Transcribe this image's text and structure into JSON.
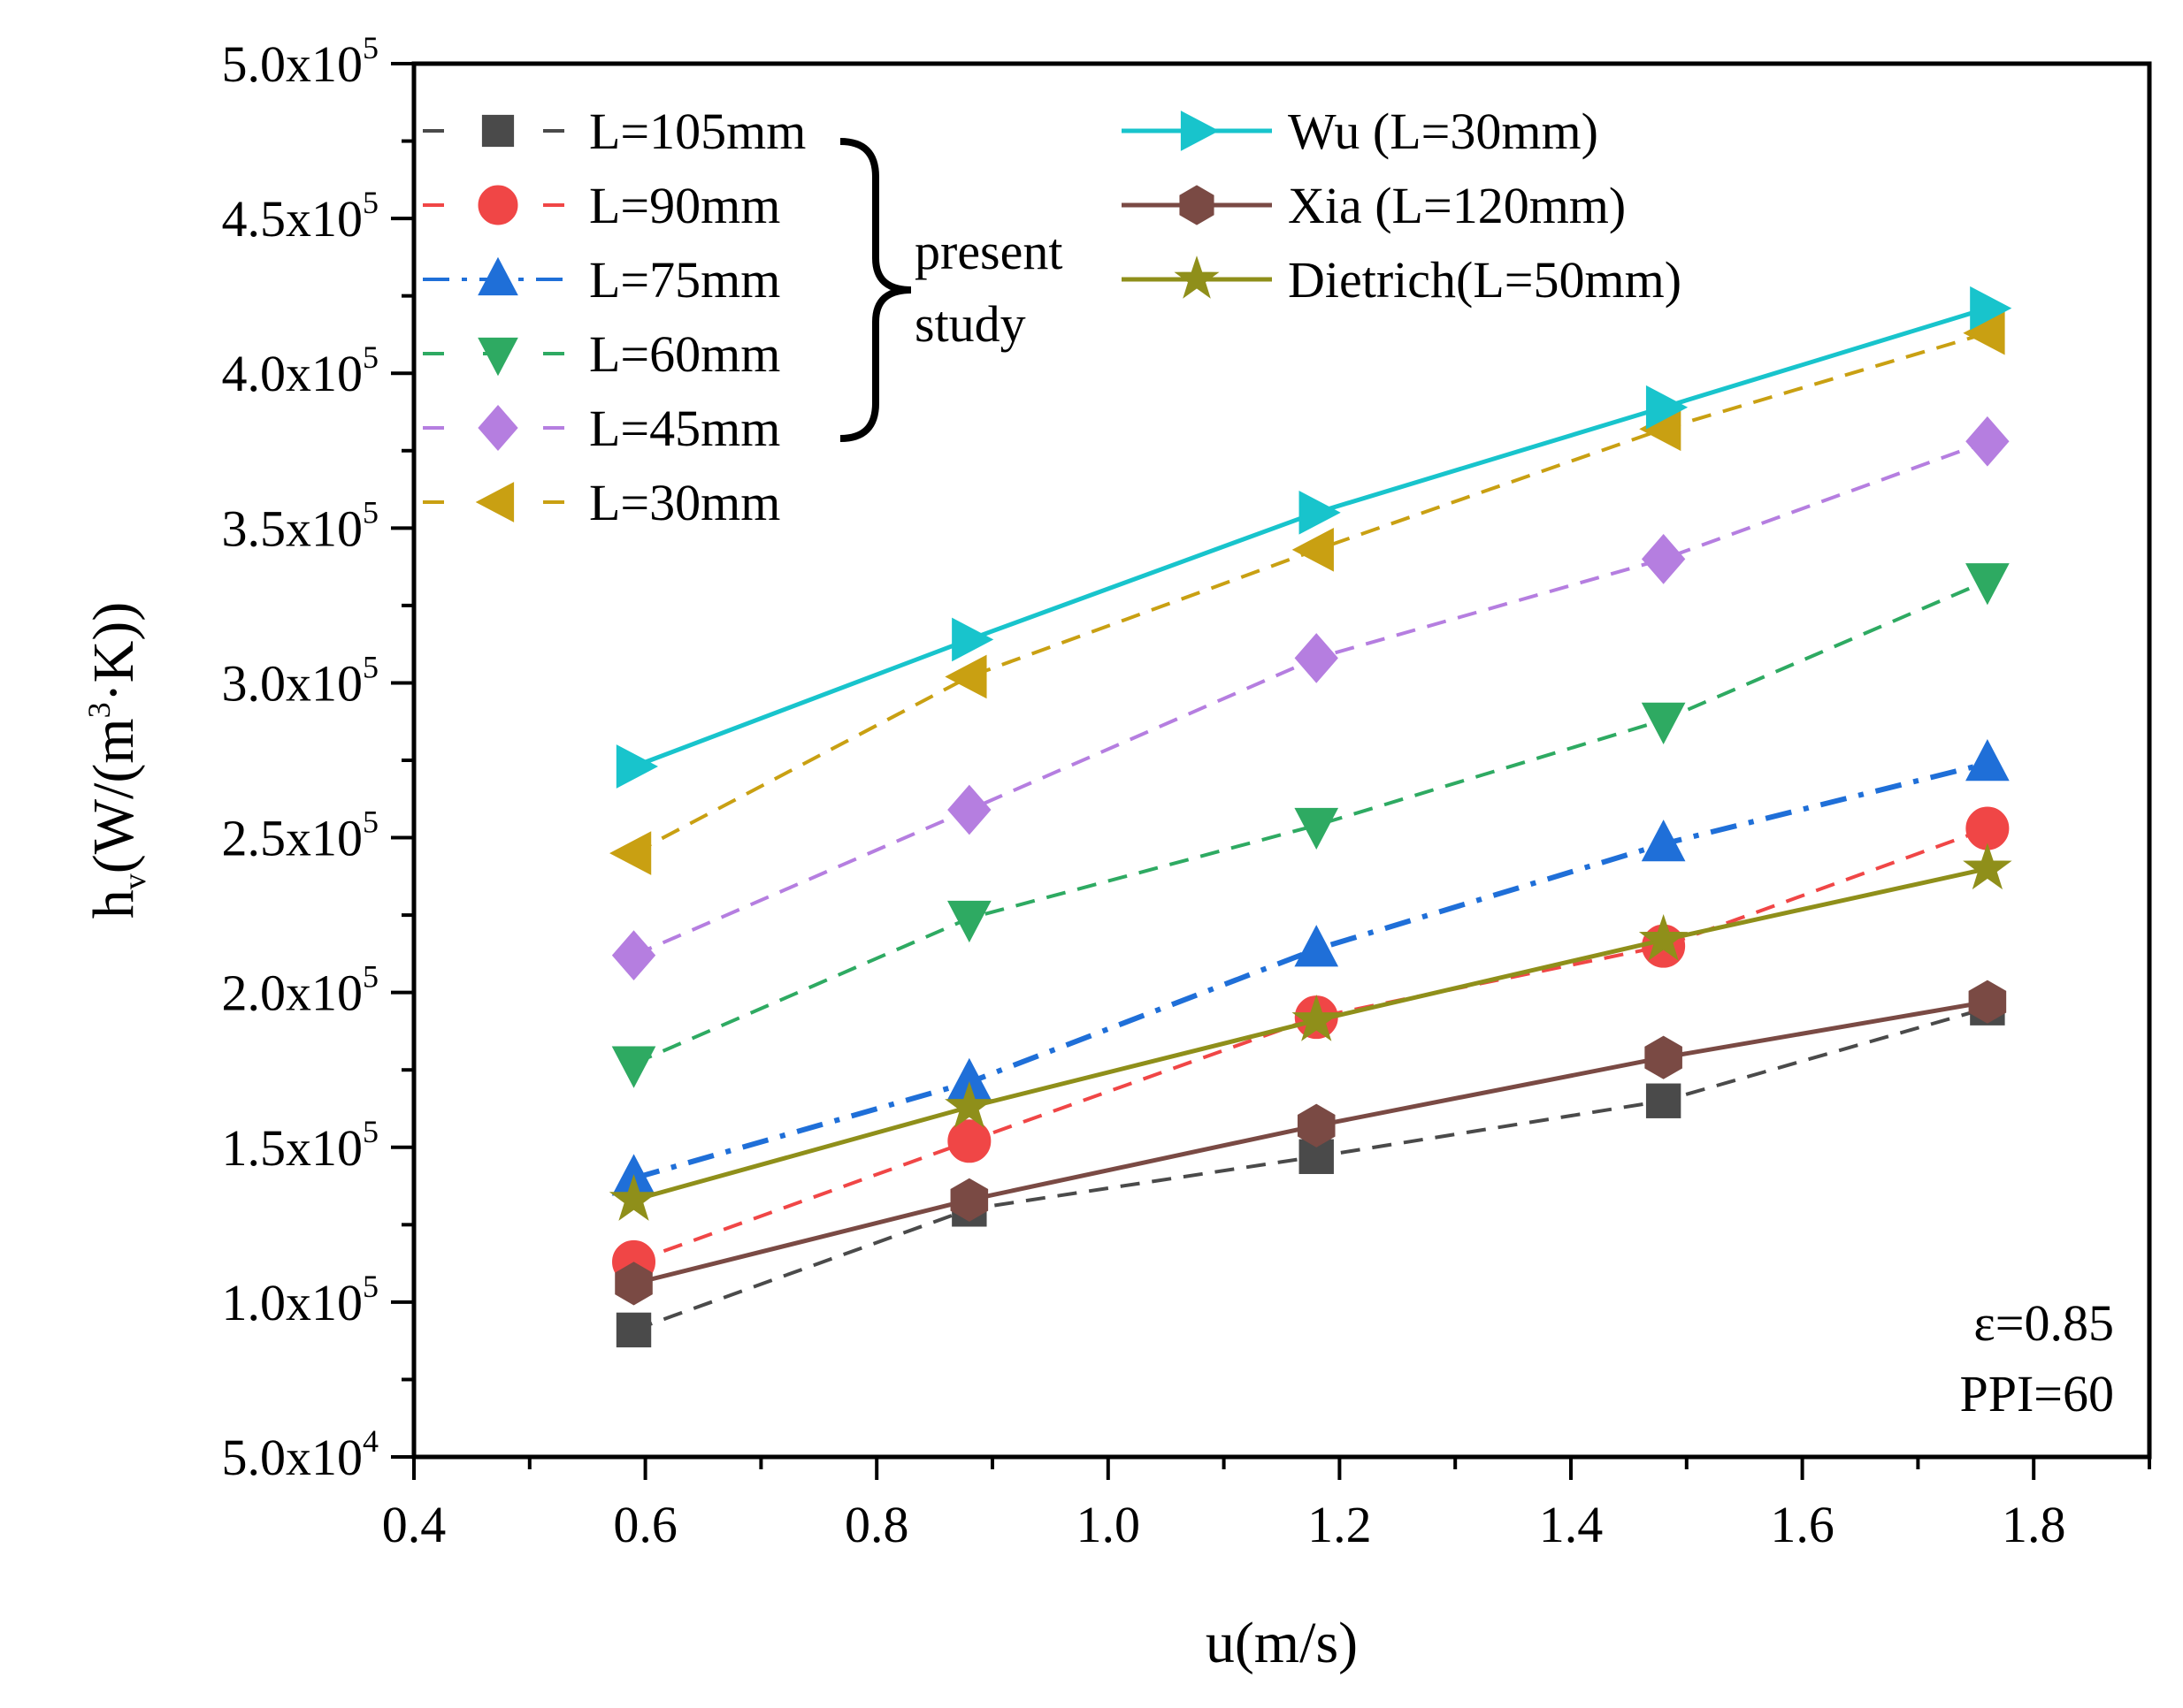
{
  "chart_data": {
    "type": "line",
    "title": "",
    "xlabel": "u(m/s)",
    "ylabel": {
      "base": "h",
      "sub": "v",
      "prefix": "(W/(m",
      "sup": "3",
      "suffix": "·K))"
    },
    "xlim": [
      0.4,
      1.9
    ],
    "ylim": [
      50000,
      500000
    ],
    "x_ticks": [
      {
        "value": 0.4,
        "label": "0.4"
      },
      {
        "value": 0.6,
        "label": "0.6"
      },
      {
        "value": 0.8,
        "label": "0.8"
      },
      {
        "value": 1.0,
        "label": "1.0"
      },
      {
        "value": 1.2,
        "label": "1.2"
      },
      {
        "value": 1.4,
        "label": "1.4"
      },
      {
        "value": 1.6,
        "label": "1.6"
      },
      {
        "value": 1.8,
        "label": "1.8"
      }
    ],
    "y_ticks": [
      {
        "value": 50000,
        "mant": "5.0x10",
        "exp": "4"
      },
      {
        "value": 100000,
        "mant": "1.0x10",
        "exp": "5"
      },
      {
        "value": 150000,
        "mant": "1.5x10",
        "exp": "5"
      },
      {
        "value": 200000,
        "mant": "2.0x10",
        "exp": "5"
      },
      {
        "value": 250000,
        "mant": "2.5x10",
        "exp": "5"
      },
      {
        "value": 300000,
        "mant": "3.0x10",
        "exp": "5"
      },
      {
        "value": 350000,
        "mant": "3.5x10",
        "exp": "5"
      },
      {
        "value": 400000,
        "mant": "4.0x10",
        "exp": "5"
      },
      {
        "value": 450000,
        "mant": "4.5x10",
        "exp": "5"
      },
      {
        "value": 500000,
        "mant": "5.0x10",
        "exp": "5"
      }
    ],
    "x": [
      0.59,
      0.88,
      1.18,
      1.48,
      1.76
    ],
    "series": [
      {
        "name": "L=105mm",
        "color": "#4a4a4a",
        "marker": "square",
        "dash": "dash",
        "values": [
          91000,
          130000,
          147000,
          165000,
          195000
        ]
      },
      {
        "name": "L=90mm",
        "color": "#f04646",
        "marker": "circle",
        "dash": "dash",
        "values": [
          113000,
          152000,
          192000,
          215000,
          253000
        ]
      },
      {
        "name": "L=75mm",
        "color": "#1f6fd8",
        "marker": "triangle-up",
        "dash": "dashdot",
        "values": [
          140000,
          171000,
          214000,
          248000,
          274000
        ]
      },
      {
        "name": "L=60mm",
        "color": "#2eaa62",
        "marker": "triangle-down",
        "dash": "dash",
        "values": [
          177000,
          224000,
          254000,
          288000,
          333000
        ]
      },
      {
        "name": "L=45mm",
        "color": "#b57ee0",
        "marker": "diamond",
        "dash": "dash",
        "values": [
          212000,
          259000,
          308000,
          340000,
          378000
        ]
      },
      {
        "name": "L=30mm",
        "color": "#c9a012",
        "marker": "triangle-left",
        "dash": "dash",
        "values": [
          245000,
          302000,
          343000,
          382000,
          413000
        ]
      },
      {
        "name": "Wu  (L=30mm)",
        "color": "#18c4cc",
        "marker": "triangle-right",
        "dash": "solid",
        "values": [
          273000,
          314000,
          355000,
          389000,
          421000
        ]
      },
      {
        "name": "Xia  (L=120mm)",
        "color": "#7a4a44",
        "marker": "hexagon",
        "dash": "solid",
        "values": [
          106000,
          133000,
          157000,
          179000,
          197000
        ]
      },
      {
        "name": "Dietrich(L=50mm)",
        "color": "#8f8f1a",
        "marker": "star",
        "dash": "solid",
        "values": [
          133000,
          163000,
          191000,
          217000,
          240000
        ]
      }
    ],
    "legend": {
      "placement": "top-left",
      "group_label": [
        "present",
        "study"
      ]
    },
    "annotations": [
      "ε=0.85",
      "PPI=60"
    ]
  }
}
